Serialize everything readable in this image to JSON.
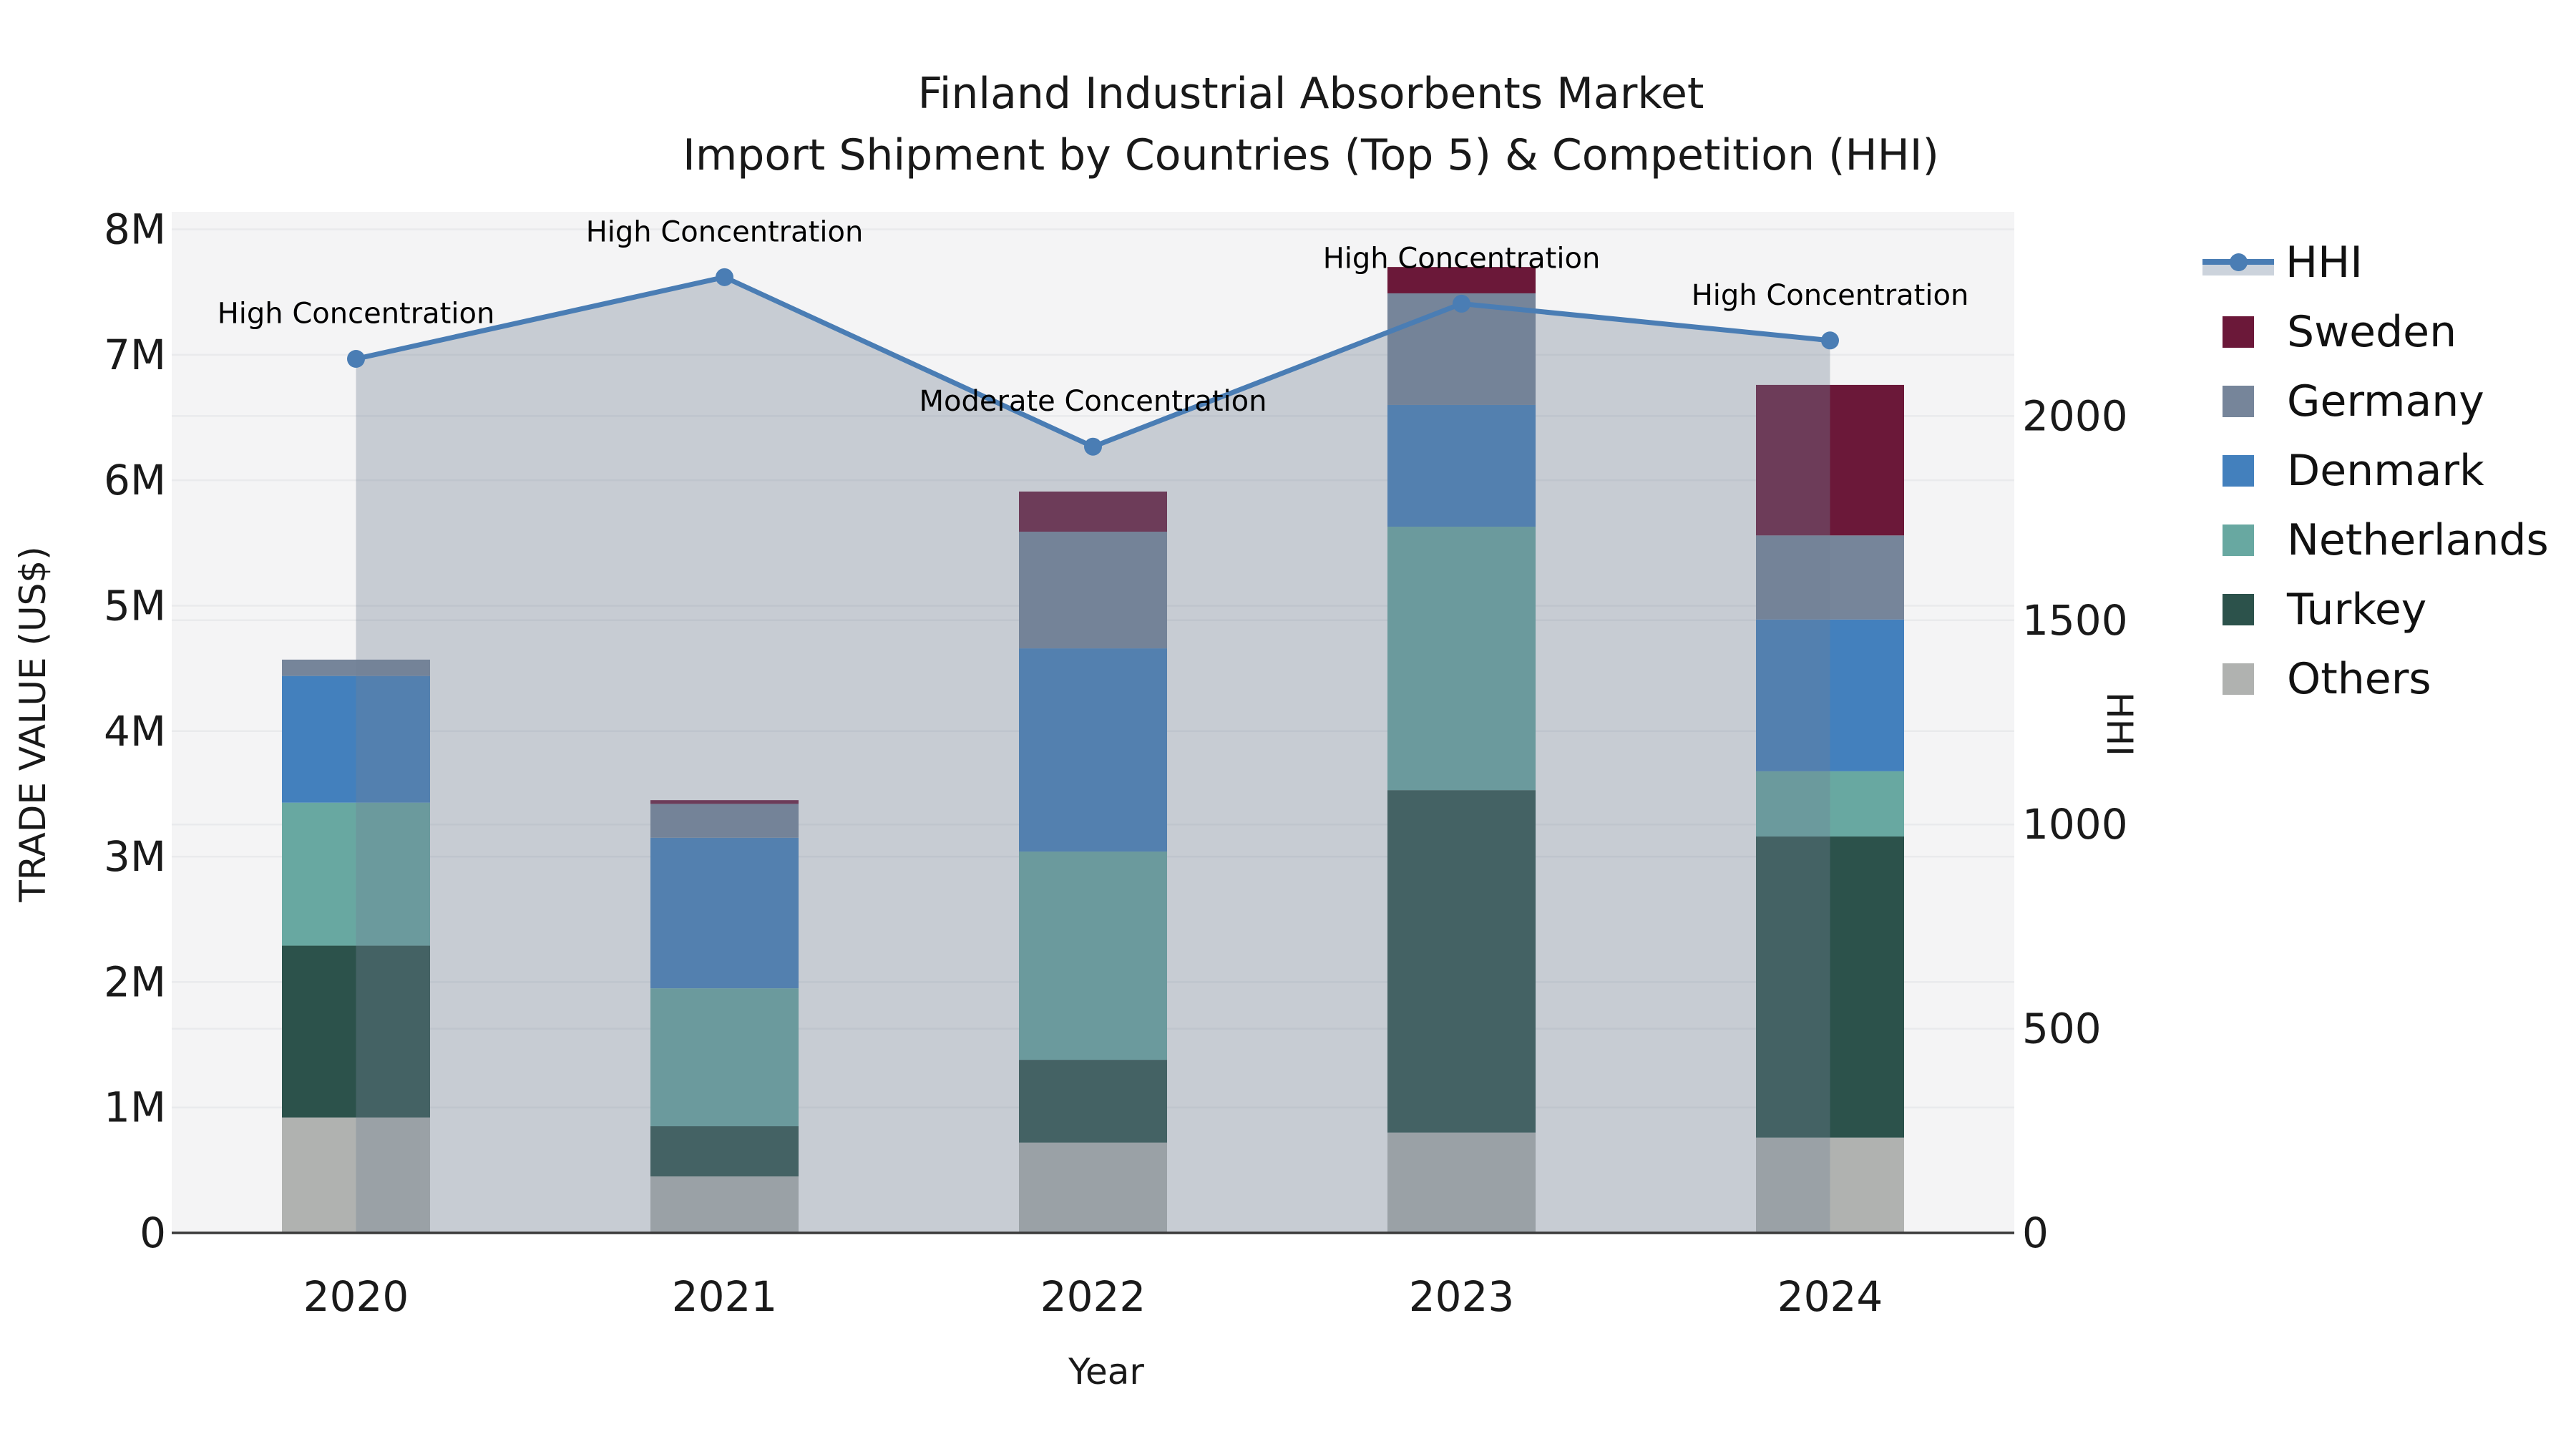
{
  "title": {
    "line1": "Finland Industrial Absorbents Market",
    "line2": "Import Shipment by Countries (Top 5) & Competition (HHI)"
  },
  "axes": {
    "left_label": "TRADE VALUE (US$)",
    "right_label": "HHI",
    "x_label": "Year"
  },
  "legend": {
    "position": "right",
    "items": [
      "HHI",
      "Sweden",
      "Germany",
      "Denmark",
      "Netherlands",
      "Turkey",
      "Others"
    ]
  },
  "colors": {
    "hhi_line": "#4a7db4",
    "hhi_area_fill": "rgba(116,130,150,0.35)",
    "hhi_legend_patch": "#ccd3dc",
    "sweden": "#6b1839",
    "germany": "#76859a",
    "denmark": "#4380bd",
    "netherlands": "#68a8a1",
    "turkey": "#2c524b",
    "others": "#b0b2b0",
    "plot_background": "#f4f4f5",
    "gridline": "#e9eaec",
    "axis_line": "#3a3a3a",
    "text": "#1a1a1a"
  },
  "chart_data": {
    "type": "bar+line",
    "title": "Finland Industrial Absorbents Market — Import Shipment by Countries (Top 5) & Competition (HHI)",
    "xlabel": "Year",
    "ylabel_left": "TRADE VALUE (US$)",
    "ylabel_right": "HHI",
    "categories": [
      "2020",
      "2021",
      "2022",
      "2023",
      "2024"
    ],
    "stack_order_bottom_to_top": [
      "Others",
      "Turkey",
      "Netherlands",
      "Denmark",
      "Germany",
      "Sweden"
    ],
    "values_unit": "millions USD",
    "series": [
      {
        "name": "Others",
        "color_key": "others",
        "values": [
          0.92,
          0.45,
          0.72,
          0.8,
          0.76
        ]
      },
      {
        "name": "Turkey",
        "color_key": "turkey",
        "values": [
          1.37,
          0.4,
          0.66,
          2.73,
          2.4
        ]
      },
      {
        "name": "Netherlands",
        "color_key": "netherlands",
        "values": [
          1.14,
          1.1,
          1.66,
          2.1,
          0.52
        ]
      },
      {
        "name": "Denmark",
        "color_key": "denmark",
        "values": [
          1.01,
          1.2,
          1.62,
          0.97,
          1.21
        ]
      },
      {
        "name": "Germany",
        "color_key": "germany",
        "values": [
          0.13,
          0.27,
          0.93,
          0.89,
          0.67
        ]
      },
      {
        "name": "Sweden",
        "color_key": "sweden",
        "values": [
          0.0,
          0.03,
          0.32,
          0.21,
          1.2
        ]
      }
    ],
    "bar_totals": [
      4.57,
      3.45,
      5.91,
      7.7,
      6.76
    ],
    "line": {
      "name": "HHI",
      "values": [
        2140,
        2340,
        1925,
        2275,
        2185
      ],
      "marker": "circle",
      "area_fill": true
    },
    "annotations": [
      {
        "category": "2020",
        "text": "High Concentration"
      },
      {
        "category": "2021",
        "text": "High Concentration"
      },
      {
        "category": "2022",
        "text": "Moderate Concentration"
      },
      {
        "category": "2023",
        "text": "High Concentration"
      },
      {
        "category": "2024",
        "text": "High Concentration"
      }
    ],
    "y_left": {
      "ticks": [
        "0",
        "1M",
        "2M",
        "3M",
        "4M",
        "5M",
        "6M",
        "7M",
        "8M"
      ],
      "tick_values": [
        0,
        1,
        2,
        3,
        4,
        5,
        6,
        7,
        8
      ],
      "ylim": [
        0,
        8.14
      ]
    },
    "y_right": {
      "ticks": [
        "0",
        "500",
        "1000",
        "1500",
        "2000"
      ],
      "tick_values": [
        0,
        500,
        1000,
        1500,
        2000
      ],
      "ylim": [
        0,
        2500
      ]
    },
    "grid": true,
    "legend_position": "right"
  }
}
